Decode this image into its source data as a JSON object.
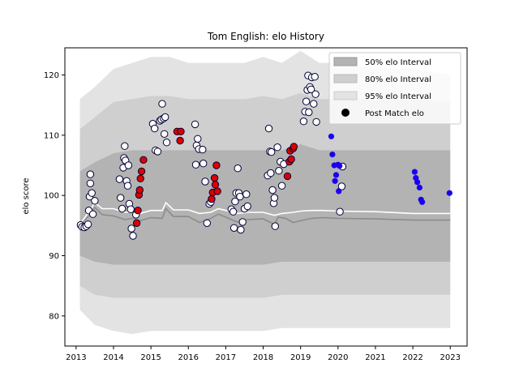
{
  "chart_data": {
    "type": "scatter",
    "title": "Tom English: elo History",
    "xlabel": "",
    "ylabel": "elo score",
    "xlim": [
      2012.7,
      2023.45
    ],
    "ylim": [
      75,
      124.5
    ],
    "xticks": [
      "2013",
      "2014",
      "2015",
      "2016",
      "2017",
      "2018",
      "2019",
      "2020",
      "2021",
      "2022",
      "2023"
    ],
    "xtick_values": [
      2013,
      2014,
      2015,
      2016,
      2017,
      2018,
      2019,
      2020,
      2021,
      2022,
      2023
    ],
    "yticks": [
      "80",
      "90",
      "100",
      "110",
      "120"
    ],
    "ytick_values": [
      80,
      90,
      100,
      110,
      120
    ],
    "grid": false,
    "legend": {
      "position": "top-right",
      "entries": [
        "50% elo Interval",
        "80% elo Interval",
        "95% elo Interval",
        "Post Match elo"
      ]
    },
    "colors": {
      "band50": "#b3b3b3",
      "band80": "#cfcfcf",
      "band95": "#e3e3e3",
      "mean_line": "#ffffff",
      "median_line": "#8c8c8c",
      "point_white": "#ffffff",
      "point_red": "#dd0000",
      "point_blue": "#1a00ee",
      "point_edge": "#000033"
    },
    "bands": {
      "x": [
        2013.1,
        2013.5,
        2014.0,
        2014.5,
        2015.0,
        2015.5,
        2016.0,
        2016.5,
        2017.0,
        2017.5,
        2018.0,
        2018.5,
        2019.0,
        2019.5,
        2020.0,
        2021.0,
        2022.0,
        2023.0
      ],
      "p95_upper": [
        116,
        118,
        121,
        122,
        123,
        123,
        122,
        122,
        122,
        122,
        123,
        122,
        124,
        122,
        122,
        121,
        121,
        120
      ],
      "p95_lower": [
        81,
        78.5,
        77.5,
        77,
        77.5,
        77.5,
        77.5,
        77.5,
        77.5,
        77.5,
        77.5,
        78,
        78,
        78,
        78,
        78,
        78,
        78
      ],
      "p80_upper": [
        111,
        113,
        115.5,
        116,
        116.5,
        116.5,
        116,
        116,
        116,
        116,
        116.5,
        116,
        117,
        116,
        116,
        116,
        116,
        115.5
      ],
      "p80_lower": [
        85,
        83.5,
        83,
        83,
        83,
        83,
        83,
        83,
        83,
        83,
        83,
        83.5,
        83.5,
        83.5,
        83.5,
        83.5,
        83.5,
        83.5
      ],
      "p50_upper": [
        104,
        105.5,
        107,
        107.5,
        107.5,
        107.5,
        107.5,
        107.5,
        107.5,
        107.5,
        107.5,
        107.5,
        108.5,
        107.5,
        107.5,
        107.5,
        107.5,
        107.5
      ],
      "p50_lower": [
        90,
        89,
        88.5,
        88.5,
        88.5,
        88.5,
        88.5,
        88.5,
        88.5,
        88.5,
        88.5,
        89,
        89,
        89,
        89,
        89,
        89,
        89
      ]
    },
    "mean_line": {
      "x": [
        2013.1,
        2013.4,
        2013.5,
        2013.7,
        2014.0,
        2014.3,
        2014.5,
        2014.7,
        2015.0,
        2015.3,
        2015.4,
        2015.6,
        2015.9,
        2016.0,
        2016.3,
        2016.6,
        2016.8,
        2017.0,
        2017.3,
        2017.6,
        2018.0,
        2018.3,
        2018.5,
        2018.8,
        2019.0,
        2019.3,
        2019.6,
        2020.0,
        2021.0,
        2022.0,
        2023.0
      ],
      "y": [
        95.2,
        97.8,
        98.8,
        97.8,
        97.8,
        97.2,
        97.3,
        97.0,
        97.5,
        97.5,
        98.8,
        97.6,
        97.6,
        97.6,
        97.0,
        97.2,
        97.8,
        97.5,
        97.0,
        97.2,
        97.2,
        96.7,
        97.0,
        97.2,
        97.4,
        97.5,
        97.5,
        97.4,
        97.3,
        97.0,
        97.0
      ]
    },
    "median_line": {
      "x": [
        2013.1,
        2013.4,
        2013.5,
        2013.7,
        2014.0,
        2014.3,
        2014.5,
        2014.7,
        2015.0,
        2015.3,
        2015.4,
        2015.6,
        2015.9,
        2016.0,
        2016.3,
        2016.6,
        2016.8,
        2017.0,
        2017.3,
        2017.6,
        2018.0,
        2018.3,
        2018.4,
        2018.6,
        2018.8,
        2019.0,
        2019.3,
        2019.6,
        2020.0,
        2021.0,
        2022.0,
        2023.0
      ],
      "y": [
        95.0,
        97.0,
        98.0,
        96.8,
        96.6,
        96.0,
        96.2,
        95.8,
        96.3,
        96.2,
        97.8,
        96.5,
        96.5,
        96.5,
        95.5,
        96.2,
        96.9,
        96.4,
        95.6,
        96.0,
        96.1,
        95.2,
        96.4,
        96.2,
        95.5,
        95.8,
        96.2,
        96.3,
        96.2,
        96.1,
        95.9,
        95.9
      ]
    },
    "points_white": [
      [
        2013.12,
        95.1
      ],
      [
        2013.16,
        94.8
      ],
      [
        2013.22,
        94.7
      ],
      [
        2013.27,
        94.9
      ],
      [
        2013.32,
        95.2
      ],
      [
        2013.34,
        97.5
      ],
      [
        2013.36,
        99.8
      ],
      [
        2013.38,
        102.0
      ],
      [
        2013.38,
        103.5
      ],
      [
        2013.42,
        100.4
      ],
      [
        2013.45,
        96.9
      ],
      [
        2013.5,
        99.1
      ],
      [
        2014.16,
        102.7
      ],
      [
        2014.19,
        99.6
      ],
      [
        2014.23,
        97.8
      ],
      [
        2014.26,
        104.6
      ],
      [
        2014.28,
        106.2
      ],
      [
        2014.3,
        108.2
      ],
      [
        2014.32,
        105.8
      ],
      [
        2014.35,
        102.4
      ],
      [
        2014.38,
        101.6
      ],
      [
        2014.4,
        105.0
      ],
      [
        2014.42,
        98.6
      ],
      [
        2014.46,
        97.7
      ],
      [
        2014.48,
        94.5
      ],
      [
        2014.52,
        93.3
      ],
      [
        2014.6,
        96.8
      ],
      [
        2015.05,
        111.9
      ],
      [
        2015.1,
        111.1
      ],
      [
        2015.12,
        107.5
      ],
      [
        2015.18,
        107.3
      ],
      [
        2015.24,
        112.4
      ],
      [
        2015.28,
        112.6
      ],
      [
        2015.3,
        115.2
      ],
      [
        2015.34,
        112.8
      ],
      [
        2015.38,
        113.0
      ],
      [
        2015.36,
        110.2
      ],
      [
        2015.42,
        108.8
      ],
      [
        2016.18,
        111.8
      ],
      [
        2016.2,
        105.1
      ],
      [
        2016.22,
        108.3
      ],
      [
        2016.25,
        109.4
      ],
      [
        2016.28,
        107.7
      ],
      [
        2016.38,
        107.6
      ],
      [
        2016.4,
        105.3
      ],
      [
        2016.45,
        102.3
      ],
      [
        2016.5,
        95.4
      ],
      [
        2016.56,
        98.6
      ],
      [
        2016.6,
        98.9
      ],
      [
        2017.15,
        97.7
      ],
      [
        2017.2,
        97.3
      ],
      [
        2017.22,
        94.6
      ],
      [
        2017.25,
        99.0
      ],
      [
        2017.28,
        100.4
      ],
      [
        2017.32,
        104.5
      ],
      [
        2017.35,
        100.4
      ],
      [
        2017.38,
        99.8
      ],
      [
        2017.4,
        94.3
      ],
      [
        2017.45,
        95.6
      ],
      [
        2017.5,
        97.8
      ],
      [
        2017.55,
        100.2
      ],
      [
        2017.58,
        98.2
      ],
      [
        2018.12,
        103.3
      ],
      [
        2018.15,
        111.1
      ],
      [
        2018.18,
        107.3
      ],
      [
        2018.2,
        103.7
      ],
      [
        2018.22,
        107.2
      ],
      [
        2018.25,
        100.9
      ],
      [
        2018.28,
        98.7
      ],
      [
        2018.3,
        99.6
      ],
      [
        2018.32,
        94.9
      ],
      [
        2018.38,
        108.0
      ],
      [
        2018.42,
        104.1
      ],
      [
        2018.46,
        105.6
      ],
      [
        2018.5,
        101.6
      ],
      [
        2018.55,
        105.2
      ],
      [
        2019.08,
        112.3
      ],
      [
        2019.12,
        113.9
      ],
      [
        2019.15,
        115.6
      ],
      [
        2019.18,
        117.5
      ],
      [
        2019.2,
        119.9
      ],
      [
        2019.22,
        113.8
      ],
      [
        2019.25,
        118.0
      ],
      [
        2019.28,
        117.6
      ],
      [
        2019.3,
        119.6
      ],
      [
        2019.35,
        115.2
      ],
      [
        2019.38,
        119.7
      ],
      [
        2019.4,
        116.8
      ],
      [
        2019.42,
        112.2
      ],
      [
        2020.05,
        97.3
      ],
      [
        2020.1,
        101.5
      ],
      [
        2020.12,
        104.8
      ]
    ],
    "points_red": [
      [
        2014.62,
        95.4
      ],
      [
        2014.65,
        97.5
      ],
      [
        2014.68,
        100.1
      ],
      [
        2014.7,
        100.9
      ],
      [
        2014.72,
        102.8
      ],
      [
        2014.75,
        104.0
      ],
      [
        2014.8,
        105.9
      ],
      [
        2015.7,
        110.6
      ],
      [
        2015.78,
        109.1
      ],
      [
        2015.8,
        110.6
      ],
      [
        2016.62,
        99.4
      ],
      [
        2016.65,
        100.5
      ],
      [
        2016.7,
        102.9
      ],
      [
        2016.72,
        101.8
      ],
      [
        2016.75,
        105.0
      ],
      [
        2016.78,
        100.7
      ],
      [
        2018.65,
        103.2
      ],
      [
        2018.7,
        105.6
      ],
      [
        2018.72,
        107.4
      ],
      [
        2018.75,
        106.0
      ],
      [
        2018.8,
        107.8
      ],
      [
        2018.82,
        108.1
      ]
    ],
    "points_blue": [
      [
        2019.82,
        109.8
      ],
      [
        2019.85,
        106.8
      ],
      [
        2019.9,
        105.0
      ],
      [
        2019.92,
        102.4
      ],
      [
        2019.95,
        103.4
      ],
      [
        2020.0,
        105.1
      ],
      [
        2020.02,
        100.7
      ],
      [
        2020.04,
        104.9
      ],
      [
        2022.05,
        103.9
      ],
      [
        2022.08,
        102.9
      ],
      [
        2022.12,
        102.2
      ],
      [
        2022.18,
        101.3
      ],
      [
        2022.22,
        99.3
      ],
      [
        2022.25,
        98.9
      ],
      [
        2022.98,
        100.4
      ]
    ]
  }
}
